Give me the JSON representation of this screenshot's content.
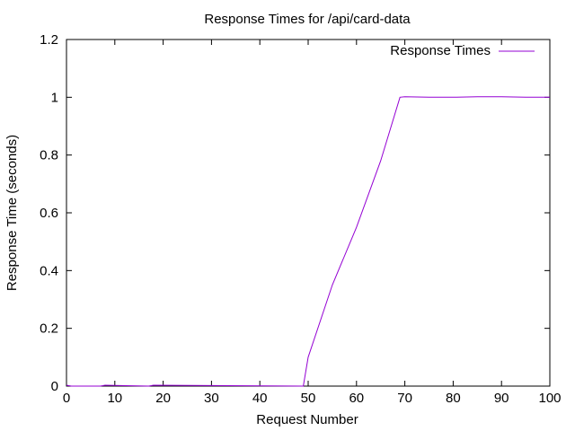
{
  "chart_data": {
    "type": "line",
    "title": "Response Times for /api/card-data",
    "xlabel": "Request Number",
    "ylabel": "Response Time (seconds)",
    "xlim": [
      0,
      100
    ],
    "ylim": [
      0,
      1.2
    ],
    "xticks": [
      "0",
      "10",
      "20",
      "30",
      "40",
      "50",
      "60",
      "70",
      "80",
      "90",
      "100"
    ],
    "yticks": [
      "0",
      "0.2",
      "0.4",
      "0.6",
      "0.8",
      "1",
      "1.2"
    ],
    "grid": false,
    "legend_position": "top-right",
    "series": [
      {
        "name": "Response Times",
        "color": "#9400d3",
        "x": [
          0,
          1,
          7,
          8,
          17,
          18,
          49,
          50,
          55,
          60,
          65,
          69,
          70,
          75,
          80,
          85,
          90,
          95,
          100
        ],
        "y": [
          0.003,
          0,
          0,
          0.003,
          0,
          0.003,
          0,
          0.1,
          0.35,
          0.55,
          0.78,
          1.0,
          1.002,
          1.0,
          1.0,
          1.002,
          1.002,
          1.0,
          1.0
        ]
      }
    ]
  }
}
